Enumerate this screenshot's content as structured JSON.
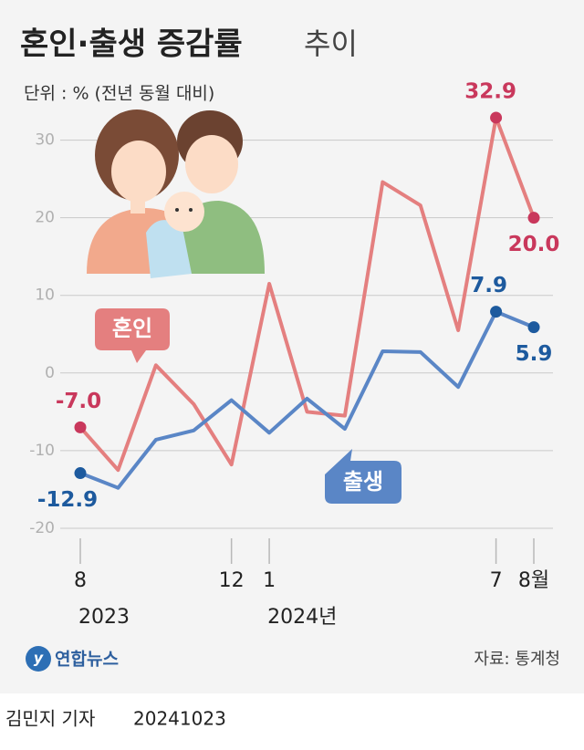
{
  "chart_data": {
    "type": "line",
    "title": "혼인·출생 증감률",
    "title_suffix": "추이",
    "subtitle": "단위 : % (전년 동월 대비)",
    "categories": [
      "8",
      null,
      null,
      null,
      "12",
      "1",
      null,
      null,
      null,
      null,
      null,
      "7",
      "8월"
    ],
    "year_labels": [
      {
        "index": 0,
        "label": "2023"
      },
      {
        "index": 5,
        "label": "2024년"
      }
    ],
    "series": [
      {
        "name": "혼인",
        "color": "#e47f7f",
        "marker_color": "#c9385c",
        "values": [
          -7.0,
          -12.5,
          1.0,
          -4.0,
          -11.8,
          11.5,
          -5.0,
          -5.5,
          24.6,
          21.6,
          5.5,
          32.9,
          20.0
        ],
        "value_labels": [
          "-7.0",
          null,
          null,
          null,
          null,
          null,
          null,
          null,
          null,
          null,
          null,
          "32.9",
          "20.0"
        ]
      },
      {
        "name": "출생",
        "color": "#5a86c6",
        "marker_color": "#1d5a9e",
        "values": [
          -12.9,
          -14.8,
          -8.6,
          -7.4,
          -3.5,
          -7.7,
          -3.3,
          -7.2,
          2.8,
          2.7,
          -1.8,
          7.9,
          5.9
        ],
        "value_labels": [
          "-12.9",
          null,
          null,
          null,
          null,
          null,
          null,
          null,
          null,
          null,
          null,
          "7.9",
          "5.9"
        ]
      }
    ],
    "ylim": [
      -21.3,
      31.6
    ],
    "yticks": [
      -20,
      -10,
      0,
      10,
      20,
      30
    ],
    "grid": true,
    "source": "자료: 통계청",
    "logo": "연합뉴스",
    "byline": "김민지 기자",
    "date": "20241023"
  }
}
